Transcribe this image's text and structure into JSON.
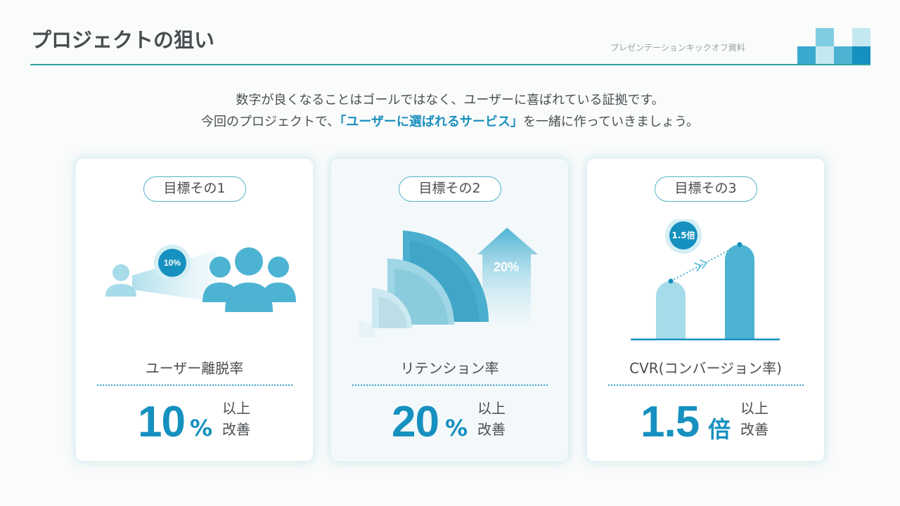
{
  "header": {
    "title": "プロジェクトの狙い",
    "subtitle": "プレゼンテーションキックオフ資料"
  },
  "lead": {
    "line1": "数字が良くなることはゴールではなく、ユーザーに喜ばれている証拠です。",
    "line2_pre": "今回のプロジェクトで、",
    "line2_highlight": "「ユーザーに選ばれるサービス」",
    "line2_post": "を一緒に作っていきましょう。"
  },
  "cards": [
    {
      "pill": "目標その1",
      "badge": "10%",
      "metric": "ユーザー離脱率",
      "value": "10",
      "unit": "%",
      "note1": "以上",
      "note2": "改善"
    },
    {
      "pill": "目標その2",
      "badge": "20%",
      "metric": "リテンション率",
      "value": "20",
      "unit": "%",
      "note1": "以上",
      "note2": "改善"
    },
    {
      "pill": "目標その3",
      "badge": "1.5倍",
      "metric": "CVR(コンバージョン率)",
      "value": "1.5",
      "unit": "倍",
      "note1": "以上",
      "note2": "改善"
    }
  ],
  "colors": {
    "accent": "#1690bf",
    "teal_line": "#2ea4a6",
    "icon_blue": "#4db3d3"
  }
}
